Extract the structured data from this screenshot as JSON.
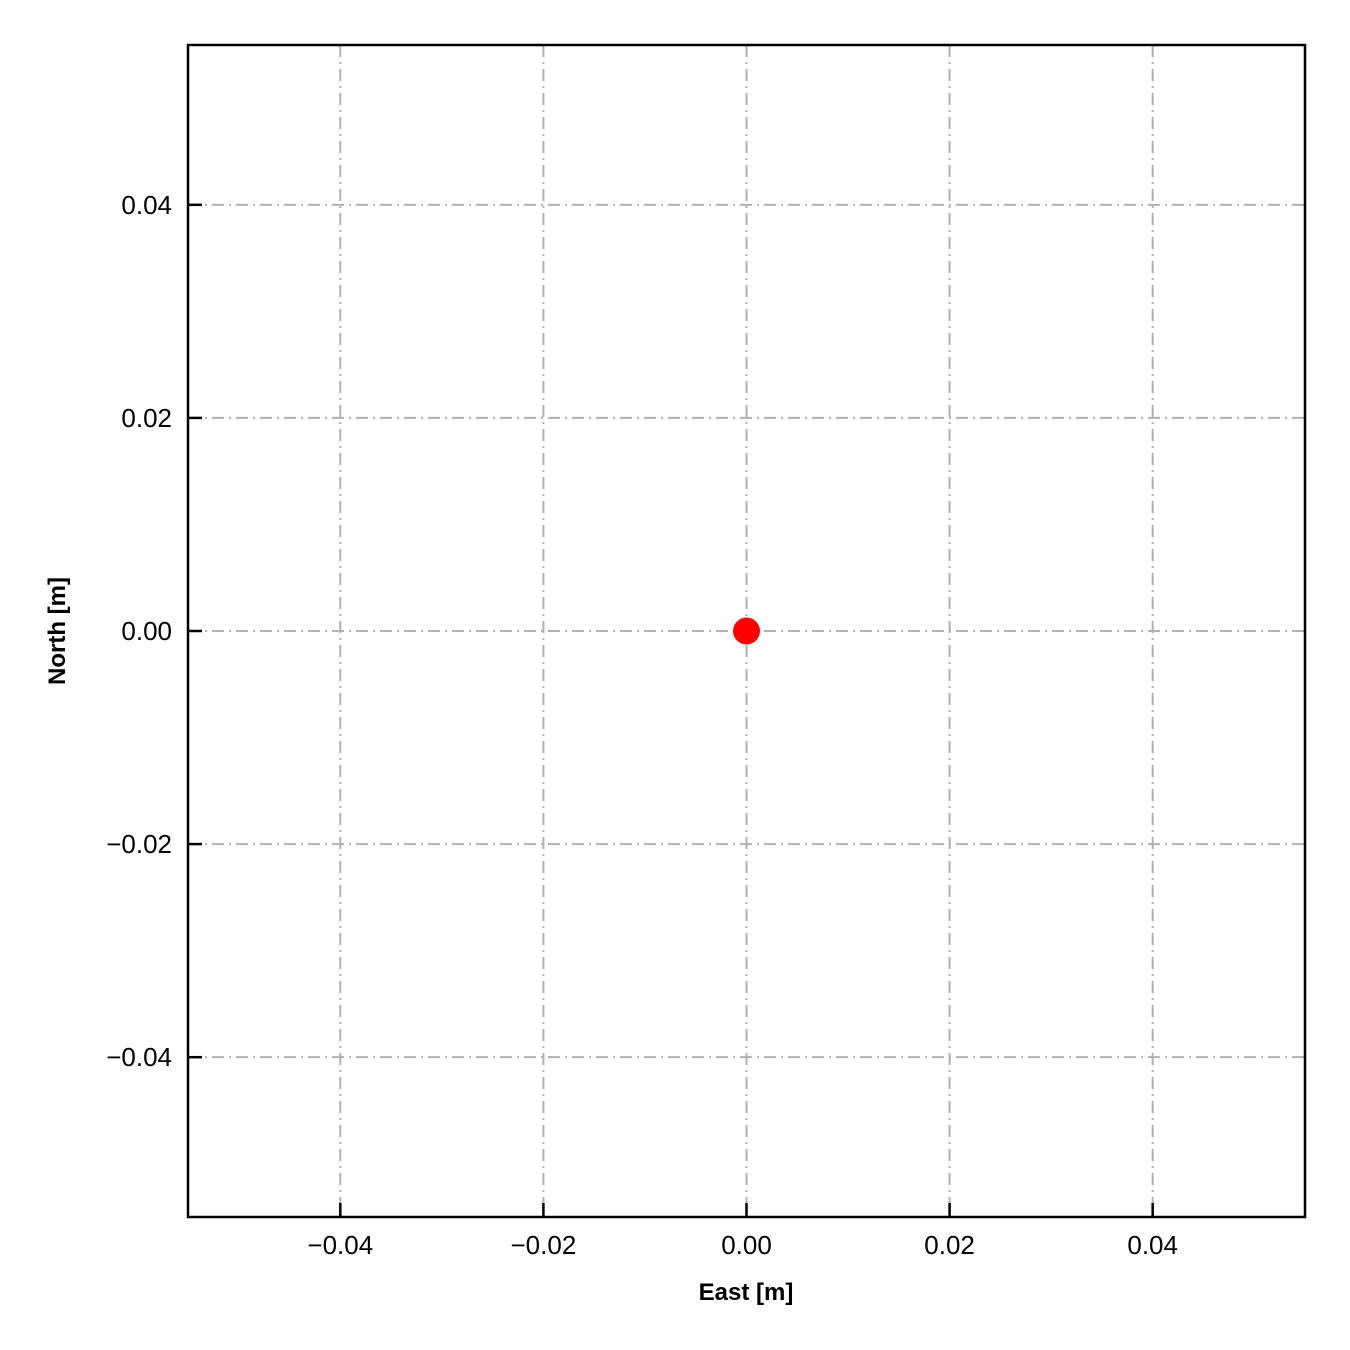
{
  "chart_data": {
    "type": "scatter",
    "title": "",
    "xlabel": "East [m]",
    "ylabel": "North [m]",
    "xlim": [
      -0.055,
      0.055
    ],
    "ylim": [
      -0.055,
      0.055
    ],
    "xticks": [
      -0.04,
      -0.02,
      0.0,
      0.02,
      0.04
    ],
    "yticks": [
      -0.04,
      -0.02,
      0.0,
      0.02,
      0.04
    ],
    "xtick_labels": [
      "−0.04",
      "−0.02",
      "0.00",
      "0.02",
      "0.04"
    ],
    "ytick_labels": [
      "−0.04",
      "−0.02",
      "0.00",
      "0.02",
      "0.04"
    ],
    "grid": true,
    "grid_style": "dash-dot",
    "grid_color": "#b0b0b0",
    "tick_direction": "in",
    "series": [
      {
        "x": [
          0.0
        ],
        "y": [
          0.0
        ],
        "color": "#ff0000",
        "marker": "circle"
      }
    ]
  }
}
